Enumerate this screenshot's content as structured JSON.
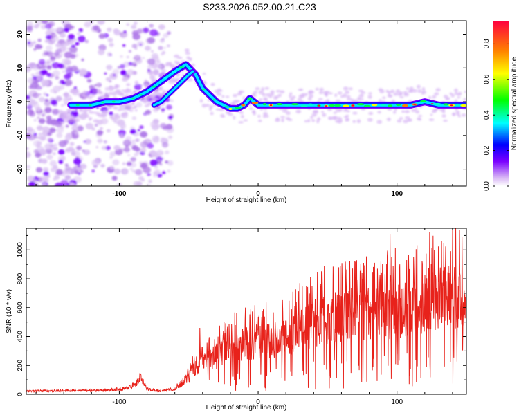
{
  "title": "S233.2026.052.00.21.C23",
  "chart_data": [
    {
      "type": "heatmap",
      "xlabel": "Height of straight line (km)",
      "ylabel": "Frequency (Hz)",
      "xlim": [
        -167,
        150
      ],
      "ylim": [
        -25,
        24
      ],
      "xticks": [
        -100,
        0,
        100
      ],
      "yticks": [
        -20,
        -10,
        0,
        10,
        20
      ],
      "colorbar": {
        "label": "Normalized spectral amplitude",
        "range": [
          0,
          0.93
        ],
        "ticks": [
          "0.0",
          "0.2",
          "0.4",
          "0.6",
          "0.8"
        ],
        "colors": [
          "#ffffff",
          "#d9b8f5",
          "#7a00ff",
          "#0000ff",
          "#00ffff",
          "#00ff00",
          "#ffff00",
          "#ff8000",
          "#ff0040"
        ]
      },
      "ridge": {
        "x": [
          -135,
          -120,
          -110,
          -100,
          -90,
          -80,
          -70,
          -60,
          -52,
          -45,
          -40,
          -30,
          -25,
          -20,
          -15,
          -10,
          -6,
          0,
          10,
          20,
          40,
          60,
          80,
          100,
          110,
          120,
          130,
          140,
          150
        ],
        "y": [
          -1,
          -1,
          0,
          0,
          1,
          3,
          6,
          9,
          11,
          8,
          4,
          0,
          -1,
          -2,
          -2,
          -1,
          1,
          -1,
          -1,
          -1,
          -1,
          -1,
          -1,
          -1,
          -1,
          0,
          -1,
          -1,
          -1
        ]
      },
      "branch": {
        "x": [
          -75,
          -70,
          -65,
          -60,
          -55,
          -50,
          -47
        ],
        "y": [
          -1,
          0,
          2,
          4,
          6,
          8,
          9
        ]
      }
    },
    {
      "type": "line",
      "xlabel": "Height of straight line (km)",
      "ylabel": "SNR (10 * v/v)",
      "xlim": [
        -167,
        150
      ],
      "ylim": [
        0,
        1150
      ],
      "xticks": [
        -100,
        0,
        100
      ],
      "yticks": [
        0,
        200,
        400,
        600,
        800,
        1000
      ],
      "color": "#e8221b",
      "envelope": {
        "x": [
          -167,
          -140,
          -110,
          -95,
          -88,
          -85,
          -80,
          -70,
          -60,
          -55,
          -50,
          -45,
          -40,
          -35,
          -30,
          -20,
          -10,
          0,
          10,
          20,
          30,
          40,
          50,
          60,
          70,
          80,
          90,
          100,
          110,
          120,
          130,
          140,
          150
        ],
        "y": [
          25,
          28,
          30,
          45,
          80,
          130,
          40,
          25,
          40,
          80,
          140,
          220,
          250,
          280,
          320,
          400,
          420,
          430,
          450,
          480,
          520,
          600,
          620,
          640,
          660,
          680,
          680,
          700,
          720,
          760,
          800,
          820,
          780
        ]
      },
      "spikes": [
        {
          "x": 127,
          "y": 1000
        },
        {
          "x": 95,
          "y": 1110
        },
        {
          "x": 145,
          "y": 1140
        },
        {
          "x": 140,
          "y": 1150
        },
        {
          "x": 132,
          "y": 1060
        },
        {
          "x": 112,
          "y": 950
        },
        {
          "x": 118,
          "y": 920
        },
        {
          "x": 102,
          "y": 900
        },
        {
          "x": 86,
          "y": 870
        },
        {
          "x": 58,
          "y": 880
        },
        {
          "x": 46,
          "y": 860
        },
        {
          "x": 30,
          "y": 770
        },
        {
          "x": 63,
          "y": 800
        },
        {
          "x": -42,
          "y": 460
        },
        {
          "x": -25,
          "y": 440
        }
      ]
    }
  ]
}
